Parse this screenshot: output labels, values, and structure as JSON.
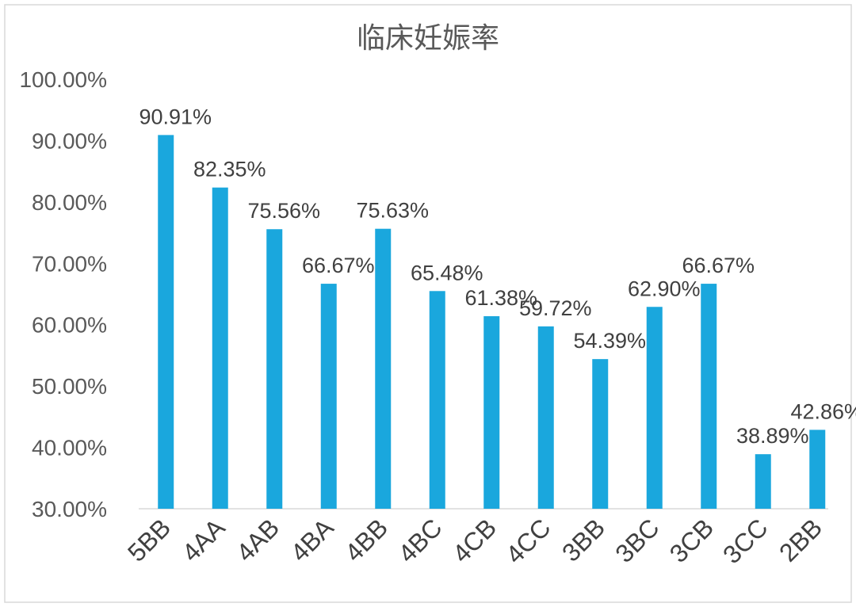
{
  "chart_data": {
    "type": "bar",
    "title": "临床妊娠率",
    "categories": [
      "5BB",
      "4AA",
      "4AB",
      "4BA",
      "4BB",
      "4BC",
      "4CB",
      "4CC",
      "3BB",
      "3BC",
      "3CB",
      "3CC",
      "2BB"
    ],
    "values": [
      90.91,
      82.35,
      75.56,
      66.67,
      75.63,
      65.48,
      61.38,
      59.72,
      54.39,
      62.9,
      66.67,
      38.89,
      42.86
    ],
    "data_labels": [
      "90.91%",
      "82.35%",
      "75.56%",
      "66.67%",
      "75.63%",
      "65.48%",
      "61.38%",
      "59.72%",
      "54.39%",
      "62.90%",
      "66.67%",
      "38.89%",
      "42.86%"
    ],
    "ylim": [
      30,
      100
    ],
    "yticks": [
      30,
      40,
      50,
      60,
      70,
      80,
      90,
      100
    ],
    "ytick_labels": [
      "30.00%",
      "40.00%",
      "50.00%",
      "60.00%",
      "70.00%",
      "80.00%",
      "90.00%",
      "100.00%"
    ],
    "xlabel": "",
    "ylabel": "",
    "bar_color": "#1aa7dd",
    "gridlines": false,
    "legend": "none"
  }
}
